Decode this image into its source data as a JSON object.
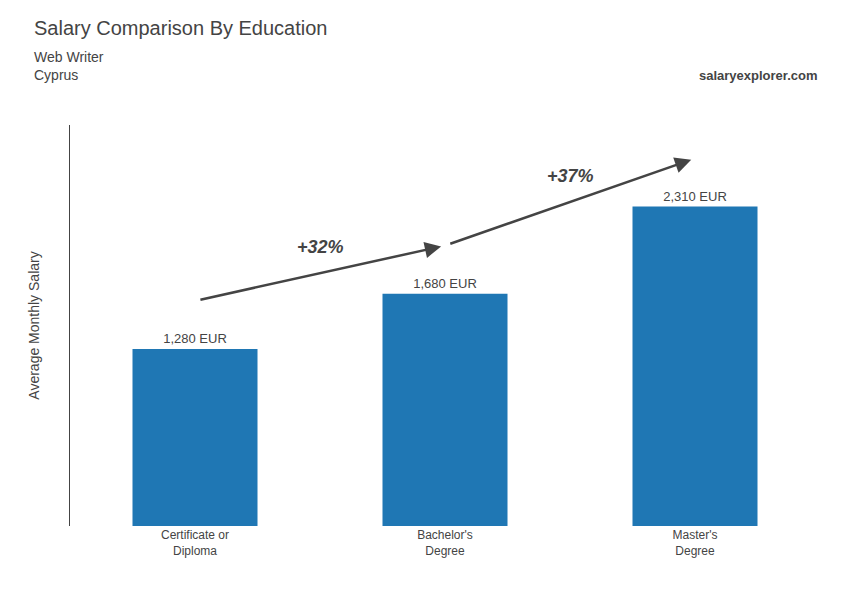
{
  "chart_data": {
    "type": "bar",
    "title": "Salary Comparison By Education",
    "subtitle": [
      "Web Writer",
      "Cyprus"
    ],
    "ylabel": "Average Monthly Salary",
    "categories": [
      "Certificate or\nDiploma",
      "Bachelor's\nDegree",
      "Master's\nDegree"
    ],
    "values": [
      1280,
      1680,
      2310
    ],
    "value_labels": [
      "1,280 EUR",
      "1,680 EUR",
      "2,310 EUR"
    ],
    "data_labels": true,
    "annotations": [
      {
        "text": "+32%",
        "from": "Certificate or\nDiploma",
        "to": "Bachelor's\nDegree"
      },
      {
        "text": "+37%",
        "from": "Bachelor's\nDegree",
        "to": "Master's\nDegree"
      },
      {
        "text": "salaryexplorer.com"
      }
    ],
    "ylim": [
      0,
      2900
    ],
    "tick_labels": "x",
    "grid": false
  }
}
